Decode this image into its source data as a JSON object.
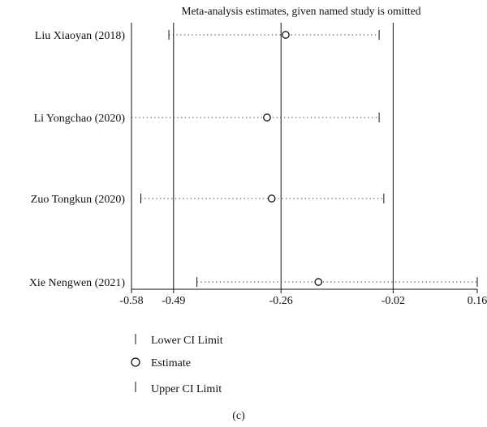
{
  "chart_data": {
    "type": "forest",
    "title": "Meta-analysis estimates, given named study is omitted",
    "xlabel": "",
    "ylabel": "",
    "xlim": [
      -0.58,
      0.16
    ],
    "xticks": [
      -0.58,
      -0.49,
      -0.26,
      -0.02,
      0.16
    ],
    "xtick_labels": [
      "-0.58",
      "-0.49",
      "-0.26",
      "-0.02",
      "0.16"
    ],
    "reference_lines": [
      -0.58,
      -0.49,
      -0.26,
      -0.02
    ],
    "studies": [
      {
        "label": "Liu Xiaoyan (2018)",
        "lower": -0.5,
        "estimate": -0.25,
        "upper": -0.05
      },
      {
        "label": "Li Yongchao (2020)",
        "lower": -0.58,
        "estimate": -0.29,
        "upper": -0.05
      },
      {
        "label": "Zuo Tongkun (2020)",
        "lower": -0.56,
        "estimate": -0.28,
        "upper": -0.04
      },
      {
        "label": "Xie Nengwen (2021)",
        "lower": -0.44,
        "estimate": -0.18,
        "upper": 0.16
      }
    ],
    "legend": {
      "lower_label": "Lower CI Limit",
      "estimate_label": "Estimate",
      "upper_label": "Upper CI Limit"
    },
    "caption": "(c)"
  }
}
